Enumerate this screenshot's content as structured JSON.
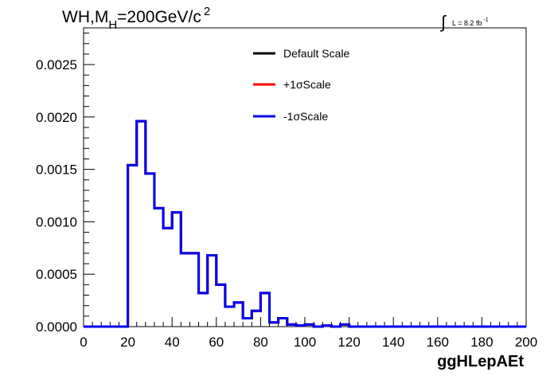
{
  "chart_data": {
    "type": "line",
    "title": "WH,M",
    "title_sub": "H",
    "title_rest": "=200GeV/c",
    "title_sup": "2",
    "lumi": {
      "integral_symbol": "∫",
      "text": "L = 8.2 fb",
      "sup": "-1"
    },
    "xlabel": "ggHLepAEt",
    "ylabel": "",
    "xlim": [
      0,
      200
    ],
    "ylim": [
      0,
      0.00285
    ],
    "x_ticks": [
      0,
      20,
      40,
      60,
      80,
      100,
      120,
      140,
      160,
      180,
      200
    ],
    "x_tick_labels": [
      "0",
      "20",
      "40",
      "60",
      "80",
      "100",
      "120",
      "140",
      "160",
      "180",
      "200"
    ],
    "y_ticks": [
      0,
      0.0005,
      0.001,
      0.0015,
      0.002,
      0.0025
    ],
    "y_tick_labels": [
      "0.0000",
      "0.0005",
      "0.0010",
      "0.0015",
      "0.0020",
      "0.0025"
    ],
    "bin_edges": [
      0,
      4,
      8,
      12,
      16,
      20,
      24,
      28,
      32,
      36,
      40,
      44,
      48,
      52,
      56,
      60,
      64,
      68,
      72,
      76,
      80,
      84,
      88,
      92,
      96,
      100,
      104,
      108,
      112,
      116,
      120,
      124,
      128,
      132,
      136,
      140,
      144,
      148,
      152,
      156,
      160,
      164,
      168,
      172,
      176,
      180,
      184,
      188,
      192,
      196,
      200
    ],
    "series": [
      {
        "name": "Default Scale",
        "color": "#000000",
        "values": [
          0,
          0,
          0,
          0,
          0,
          0.00154,
          0.00196,
          0.00146,
          0.00113,
          0.00094,
          0.00109,
          0.0007,
          0.0007,
          0.00032,
          0.00068,
          0.0004,
          0.00019,
          0.00023,
          8e-05,
          0.00015,
          0.00032,
          4e-05,
          8e-05,
          2e-05,
          1e-05,
          2e-05,
          0,
          1e-05,
          0,
          2e-05,
          0,
          0,
          0,
          0,
          0,
          0,
          0,
          0,
          0,
          0,
          0,
          0,
          0,
          0,
          0,
          0,
          0,
          0,
          0,
          0
        ]
      },
      {
        "name": "+1σScale",
        "color": "#ff0000",
        "values": [
          0,
          0,
          0,
          0,
          0,
          0.00154,
          0.00196,
          0.00146,
          0.00113,
          0.00094,
          0.00109,
          0.0007,
          0.0007,
          0.00032,
          0.00068,
          0.0004,
          0.00019,
          0.00023,
          8e-05,
          0.00015,
          0.00032,
          4e-05,
          8e-05,
          2e-05,
          1e-05,
          2e-05,
          0,
          1e-05,
          0,
          2e-05,
          0,
          0,
          0,
          0,
          0,
          0,
          0,
          0,
          0,
          0,
          0,
          0,
          0,
          0,
          0,
          0,
          0,
          0,
          0,
          0
        ]
      },
      {
        "name": "-1σScale",
        "color": "#0000ee",
        "values": [
          0,
          0,
          0,
          0,
          0,
          0.00154,
          0.00196,
          0.00146,
          0.00113,
          0.00094,
          0.00109,
          0.0007,
          0.0007,
          0.00032,
          0.00068,
          0.0004,
          0.00019,
          0.00023,
          8e-05,
          0.00015,
          0.00032,
          4e-05,
          8e-05,
          2e-05,
          1e-05,
          2e-05,
          0,
          1e-05,
          0,
          2e-05,
          0,
          0,
          0,
          0,
          0,
          0,
          0,
          0,
          0,
          0,
          0,
          0,
          0,
          0,
          0,
          0,
          0,
          0,
          0,
          0
        ]
      }
    ],
    "legend_placement": "top-center",
    "grid": false
  }
}
